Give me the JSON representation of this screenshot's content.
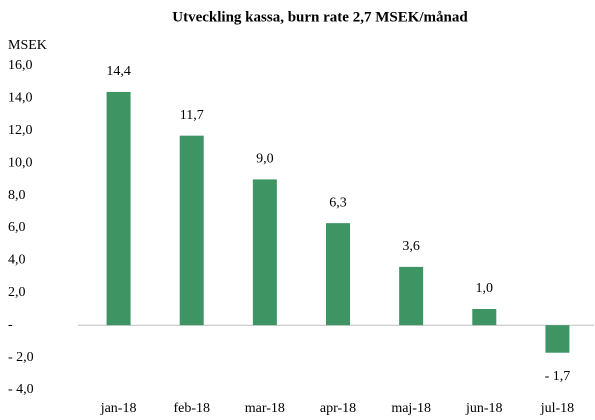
{
  "chart_data": {
    "type": "bar",
    "title": "Utveckling kassa, burn rate 2,7 MSEK/månad",
    "y_label": "MSEK",
    "categories": [
      "jan-18",
      "feb-18",
      "mar-18",
      "apr-18",
      "maj-18",
      "jun-18",
      "jul-18"
    ],
    "values": [
      14.4,
      11.7,
      9.0,
      6.3,
      3.6,
      1.0,
      -1.7
    ],
    "value_labels": [
      "14,4",
      "11,7",
      "9,0",
      "6,3",
      "3,6",
      "1,0",
      "- 1,7"
    ],
    "color": "#3f9464",
    "ylim": [
      -4,
      16
    ],
    "yticks": [
      {
        "value": -4,
        "label": "- 4,0"
      },
      {
        "value": -2,
        "label": "- 2,0"
      },
      {
        "value": 0,
        "label": "-"
      },
      {
        "value": 2,
        "label": "2,0"
      },
      {
        "value": 4,
        "label": "4,0"
      },
      {
        "value": 6,
        "label": "6,0"
      },
      {
        "value": 8,
        "label": "8,0"
      },
      {
        "value": 10,
        "label": "10,0"
      },
      {
        "value": 12,
        "label": "12,0"
      },
      {
        "value": 14,
        "label": "14,0"
      },
      {
        "value": 16,
        "label": "16,0"
      }
    ]
  }
}
